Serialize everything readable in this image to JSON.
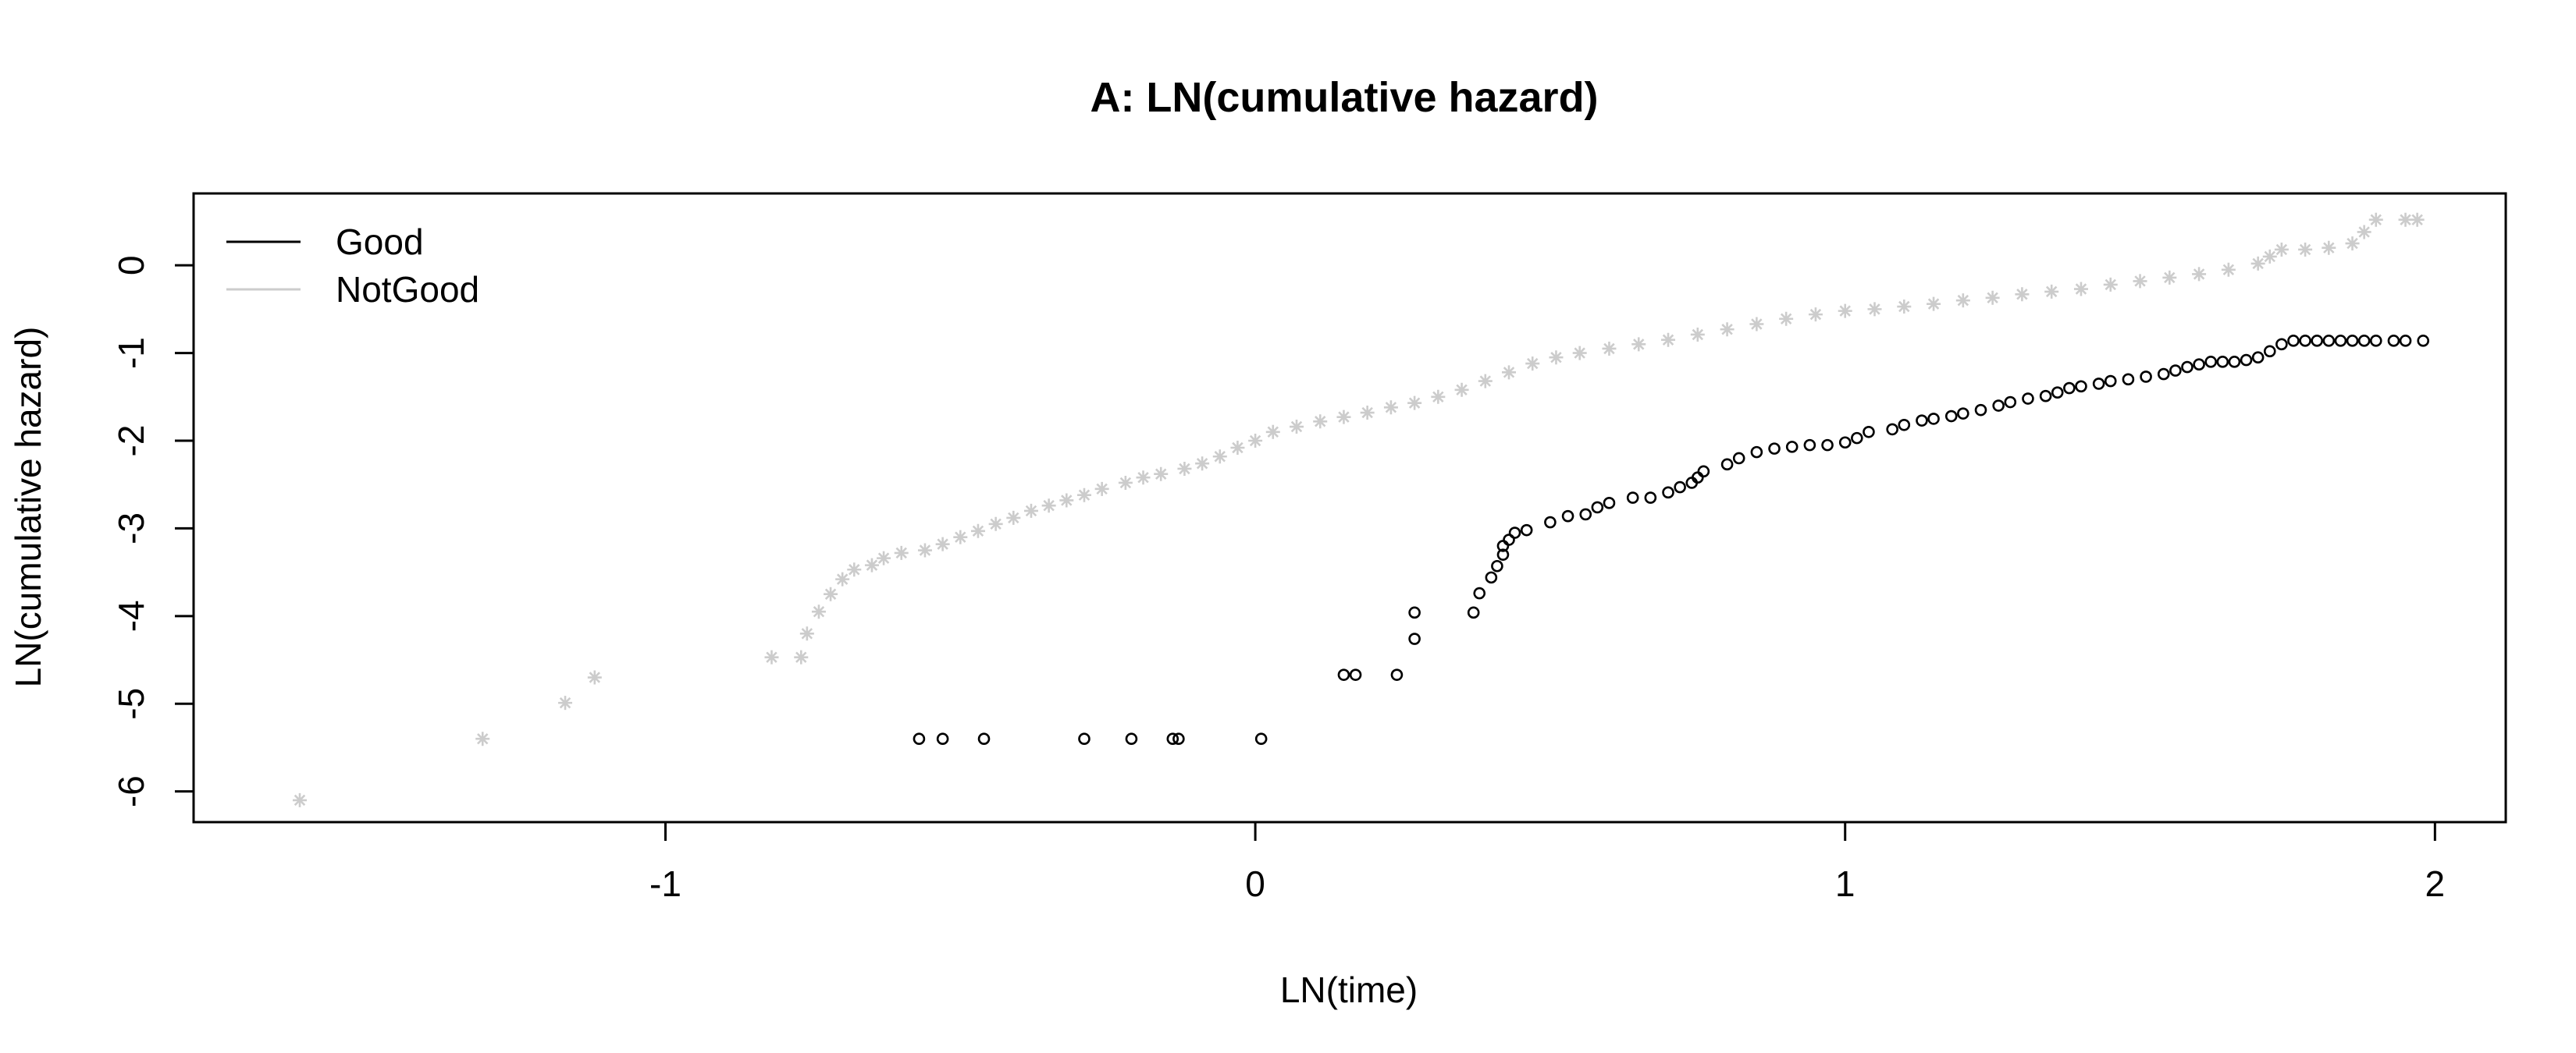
{
  "chart_data": {
    "type": "scatter",
    "title": "A: LN(cumulative hazard)",
    "xlabel": "LN(time)",
    "ylabel": "LN(cumulative hazard)",
    "xlim": [
      -1.8,
      2.12
    ],
    "ylim": [
      -6.35,
      0.82
    ],
    "x_ticks": [
      -1,
      0,
      1,
      2
    ],
    "x_tick_labels": [
      "-1",
      "0",
      "1",
      "2"
    ],
    "y_ticks": [
      -6,
      -5,
      -4,
      -3,
      -2,
      -1,
      0
    ],
    "y_tick_labels": [
      "-6",
      "-5",
      "-4",
      "-3",
      "-2",
      "-1",
      "0"
    ],
    "grid": false,
    "legend_position": "top-left",
    "series": [
      {
        "name": "Good",
        "marker": "circle",
        "color": "#000000",
        "points": [
          [
            -0.57,
            -5.4
          ],
          [
            -0.53,
            -5.4
          ],
          [
            -0.46,
            -5.4
          ],
          [
            -0.29,
            -5.4
          ],
          [
            -0.21,
            -5.4
          ],
          [
            -0.14,
            -5.4
          ],
          [
            -0.13,
            -5.4
          ],
          [
            0.01,
            -5.4
          ],
          [
            0.15,
            -4.67
          ],
          [
            0.17,
            -4.67
          ],
          [
            0.24,
            -4.67
          ],
          [
            0.27,
            -4.26
          ],
          [
            0.27,
            -3.96
          ],
          [
            0.37,
            -3.96
          ],
          [
            0.38,
            -3.74
          ],
          [
            0.4,
            -3.56
          ],
          [
            0.41,
            -3.43
          ],
          [
            0.42,
            -3.3
          ],
          [
            0.42,
            -3.2
          ],
          [
            0.43,
            -3.13
          ],
          [
            0.44,
            -3.05
          ],
          [
            0.46,
            -3.02
          ],
          [
            0.5,
            -2.93
          ],
          [
            0.53,
            -2.86
          ],
          [
            0.56,
            -2.84
          ],
          [
            0.58,
            -2.76
          ],
          [
            0.6,
            -2.71
          ],
          [
            0.64,
            -2.65
          ],
          [
            0.67,
            -2.65
          ],
          [
            0.7,
            -2.59
          ],
          [
            0.72,
            -2.53
          ],
          [
            0.74,
            -2.48
          ],
          [
            0.75,
            -2.42
          ],
          [
            0.76,
            -2.35
          ],
          [
            0.8,
            -2.27
          ],
          [
            0.82,
            -2.2
          ],
          [
            0.85,
            -2.13
          ],
          [
            0.88,
            -2.09
          ],
          [
            0.91,
            -2.07
          ],
          [
            0.94,
            -2.05
          ],
          [
            0.97,
            -2.05
          ],
          [
            1.0,
            -2.02
          ],
          [
            1.02,
            -1.97
          ],
          [
            1.04,
            -1.9
          ],
          [
            1.08,
            -1.87
          ],
          [
            1.1,
            -1.82
          ],
          [
            1.13,
            -1.77
          ],
          [
            1.15,
            -1.75
          ],
          [
            1.18,
            -1.72
          ],
          [
            1.2,
            -1.69
          ],
          [
            1.23,
            -1.65
          ],
          [
            1.26,
            -1.6
          ],
          [
            1.28,
            -1.56
          ],
          [
            1.31,
            -1.52
          ],
          [
            1.34,
            -1.49
          ],
          [
            1.36,
            -1.45
          ],
          [
            1.38,
            -1.4
          ],
          [
            1.4,
            -1.38
          ],
          [
            1.43,
            -1.35
          ],
          [
            1.45,
            -1.32
          ],
          [
            1.48,
            -1.3
          ],
          [
            1.51,
            -1.27
          ],
          [
            1.54,
            -1.24
          ],
          [
            1.56,
            -1.2
          ],
          [
            1.58,
            -1.16
          ],
          [
            1.6,
            -1.13
          ],
          [
            1.62,
            -1.1
          ],
          [
            1.64,
            -1.1
          ],
          [
            1.66,
            -1.1
          ],
          [
            1.68,
            -1.08
          ],
          [
            1.7,
            -1.05
          ],
          [
            1.72,
            -0.98
          ],
          [
            1.74,
            -0.9
          ],
          [
            1.76,
            -0.86
          ],
          [
            1.78,
            -0.86
          ],
          [
            1.8,
            -0.86
          ],
          [
            1.82,
            -0.86
          ],
          [
            1.84,
            -0.86
          ],
          [
            1.86,
            -0.86
          ],
          [
            1.88,
            -0.86
          ],
          [
            1.9,
            -0.86
          ],
          [
            1.93,
            -0.86
          ],
          [
            1.95,
            -0.86
          ],
          [
            1.98,
            -0.86
          ]
        ]
      },
      {
        "name": "NotGood",
        "marker": "asterisk",
        "color": "#cccccc",
        "points": [
          [
            -1.62,
            -6.1
          ],
          [
            -1.31,
            -5.4
          ],
          [
            -1.17,
            -4.99
          ],
          [
            -1.12,
            -4.7
          ],
          [
            -0.82,
            -4.47
          ],
          [
            -0.77,
            -4.47
          ],
          [
            -0.76,
            -4.2
          ],
          [
            -0.74,
            -3.95
          ],
          [
            -0.72,
            -3.75
          ],
          [
            -0.7,
            -3.58
          ],
          [
            -0.68,
            -3.47
          ],
          [
            -0.65,
            -3.42
          ],
          [
            -0.63,
            -3.34
          ],
          [
            -0.6,
            -3.28
          ],
          [
            -0.56,
            -3.25
          ],
          [
            -0.53,
            -3.18
          ],
          [
            -0.5,
            -3.1
          ],
          [
            -0.47,
            -3.03
          ],
          [
            -0.44,
            -2.95
          ],
          [
            -0.41,
            -2.88
          ],
          [
            -0.38,
            -2.8
          ],
          [
            -0.35,
            -2.74
          ],
          [
            -0.32,
            -2.68
          ],
          [
            -0.29,
            -2.62
          ],
          [
            -0.26,
            -2.55
          ],
          [
            -0.22,
            -2.48
          ],
          [
            -0.19,
            -2.42
          ],
          [
            -0.16,
            -2.38
          ],
          [
            -0.12,
            -2.32
          ],
          [
            -0.09,
            -2.26
          ],
          [
            -0.06,
            -2.18
          ],
          [
            -0.03,
            -2.08
          ],
          [
            0.0,
            -2.0
          ],
          [
            0.03,
            -1.9
          ],
          [
            0.07,
            -1.84
          ],
          [
            0.11,
            -1.78
          ],
          [
            0.15,
            -1.73
          ],
          [
            0.19,
            -1.68
          ],
          [
            0.23,
            -1.62
          ],
          [
            0.27,
            -1.57
          ],
          [
            0.31,
            -1.5
          ],
          [
            0.35,
            -1.42
          ],
          [
            0.39,
            -1.32
          ],
          [
            0.43,
            -1.22
          ],
          [
            0.47,
            -1.12
          ],
          [
            0.51,
            -1.05
          ],
          [
            0.55,
            -1.0
          ],
          [
            0.6,
            -0.95
          ],
          [
            0.65,
            -0.9
          ],
          [
            0.7,
            -0.85
          ],
          [
            0.75,
            -0.79
          ],
          [
            0.8,
            -0.73
          ],
          [
            0.85,
            -0.67
          ],
          [
            0.9,
            -0.61
          ],
          [
            0.95,
            -0.56
          ],
          [
            1.0,
            -0.52
          ],
          [
            1.05,
            -0.5
          ],
          [
            1.1,
            -0.47
          ],
          [
            1.15,
            -0.44
          ],
          [
            1.2,
            -0.4
          ],
          [
            1.25,
            -0.37
          ],
          [
            1.3,
            -0.33
          ],
          [
            1.35,
            -0.3
          ],
          [
            1.4,
            -0.27
          ],
          [
            1.45,
            -0.22
          ],
          [
            1.5,
            -0.18
          ],
          [
            1.55,
            -0.14
          ],
          [
            1.6,
            -0.1
          ],
          [
            1.65,
            -0.05
          ],
          [
            1.7,
            0.02
          ],
          [
            1.72,
            0.1
          ],
          [
            1.74,
            0.18
          ],
          [
            1.78,
            0.18
          ],
          [
            1.82,
            0.2
          ],
          [
            1.86,
            0.25
          ],
          [
            1.88,
            0.38
          ],
          [
            1.9,
            0.52
          ],
          [
            1.95,
            0.52
          ],
          [
            1.97,
            0.52
          ]
        ]
      }
    ]
  }
}
